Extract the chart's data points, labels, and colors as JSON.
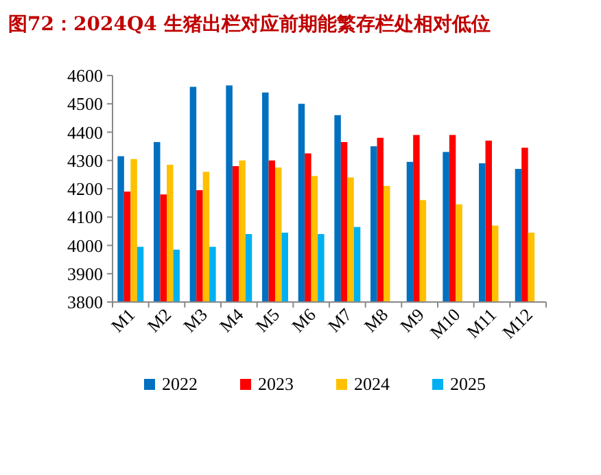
{
  "chart_data": {
    "type": "bar",
    "title": "图72：2024Q4 生猪出栏对应前期能繁存栏处相对低位",
    "categories": [
      "M1",
      "M2",
      "M3",
      "M4",
      "M5",
      "M6",
      "M7",
      "M8",
      "M9",
      "M10",
      "M11",
      "M12"
    ],
    "series": [
      {
        "name": "2022",
        "color": "#0070c0",
        "values": [
          4315,
          4365,
          4560,
          4565,
          4540,
          4500,
          4460,
          4350,
          4295,
          4330,
          4290,
          4270
        ]
      },
      {
        "name": "2023",
        "color": "#ff0000",
        "values": [
          4190,
          4180,
          4195,
          4280,
          4300,
          4325,
          4365,
          4380,
          4390,
          4390,
          4370,
          4345
        ]
      },
      {
        "name": "2024",
        "color": "#ffc000",
        "values": [
          4305,
          4285,
          4260,
          4300,
          4275,
          4245,
          4240,
          4210,
          4160,
          4145,
          4070,
          4045
        ]
      },
      {
        "name": "2025",
        "color": "#00b0f0",
        "values": [
          3995,
          3985,
          3995,
          4040,
          4045,
          4040,
          4065,
          null,
          null,
          null,
          null,
          null
        ]
      }
    ],
    "ylim": [
      3800,
      4600
    ],
    "yticks": [
      3800,
      3900,
      4000,
      4100,
      4200,
      4300,
      4400,
      4500,
      4600
    ],
    "legend": "bottom",
    "grid": false
  }
}
